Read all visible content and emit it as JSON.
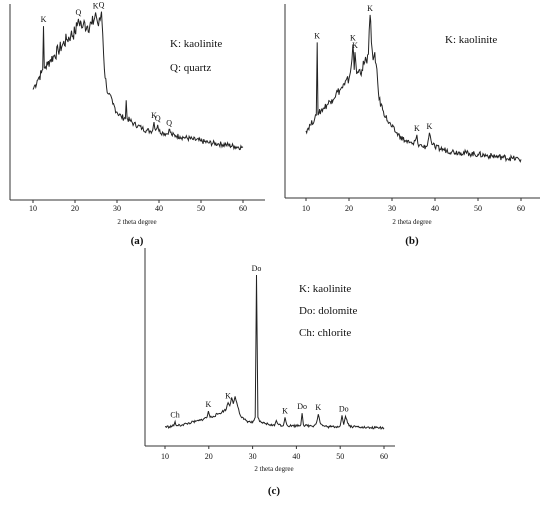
{
  "chart_data": [
    {
      "id": "a",
      "type": "line",
      "panel_label": "(a)",
      "xlabel": "2 theta degree",
      "ylabel": "",
      "xlim": [
        10,
        60
      ],
      "xticks": [
        "10",
        "20",
        "30",
        "40",
        "50",
        "60"
      ],
      "legend": [
        "K: kaolinite",
        "Q: quartz"
      ],
      "series": [
        {
          "x": [
            10,
            10.5,
            11,
            11.5,
            12,
            12.3,
            12.5,
            12.7,
            13,
            13.5,
            14,
            15,
            16,
            17,
            18,
            19,
            20,
            20.5,
            20.8,
            21,
            21.3,
            21.6,
            22,
            23,
            24,
            24.5,
            24.9,
            25.2,
            25.6,
            26,
            26.3,
            26.6,
            27,
            27.5,
            28,
            29,
            30,
            31,
            32,
            32.2,
            32.4,
            33,
            34,
            35,
            36,
            37,
            38,
            38.5,
            38.8,
            39.2,
            39.7,
            40,
            41,
            42,
            42.4,
            43,
            44,
            45,
            46,
            48,
            50,
            52,
            54,
            56,
            58,
            60
          ],
          "y": [
            100,
            105,
            110,
            114,
            118,
            122,
            170,
            124,
            125,
            128,
            132,
            137,
            143,
            149,
            155,
            160,
            163,
            170,
            178,
            173,
            176,
            168,
            172,
            170,
            172,
            176,
            185,
            178,
            170,
            177,
            186,
            162,
            122,
            103,
            95,
            84,
            75,
            70,
            68,
            88,
            68,
            66,
            62,
            60,
            57,
            55,
            54,
            55,
            64,
            55,
            61,
            54,
            52,
            51,
            56,
            50,
            49,
            48,
            47,
            45,
            43,
            41,
            40,
            39,
            37,
            36
          ]
        }
      ],
      "annotations": [
        {
          "text": "K",
          "x": 12.5,
          "y": 170
        },
        {
          "text": "Q",
          "x": 20.8,
          "y": 178
        },
        {
          "text": "K",
          "x": 24.9,
          "y": 185
        },
        {
          "text": "Q",
          "x": 26.3,
          "y": 186
        },
        {
          "text": "K",
          "x": 38.8,
          "y": 64
        },
        {
          "text": "Q",
          "x": 39.7,
          "y": 61
        },
        {
          "text": "Q",
          "x": 42.4,
          "y": 56
        }
      ]
    },
    {
      "id": "b",
      "type": "line",
      "panel_label": "(b)",
      "xlabel": "2 theta degree",
      "ylabel": "",
      "xlim": [
        10,
        60
      ],
      "xticks": [
        "10",
        "20",
        "30",
        "40",
        "50",
        "60"
      ],
      "legend": [
        "K: kaolinite"
      ],
      "series": [
        {
          "x": [
            10,
            11,
            12,
            12.4,
            12.6,
            12.8,
            13,
            14,
            15,
            16,
            17,
            18,
            19,
            20,
            20.5,
            20.9,
            21.2,
            21.4,
            21.8,
            22,
            23,
            23.5,
            24,
            24.5,
            24.9,
            25.2,
            25.6,
            26,
            26.3,
            26.7,
            27,
            28,
            29,
            30,
            31,
            32,
            33,
            34,
            35,
            35.4,
            35.8,
            36.2,
            36.6,
            37,
            38,
            38.4,
            38.7,
            39.1,
            39.5,
            40,
            42,
            44,
            46,
            48,
            50,
            52,
            54,
            56,
            58,
            60
          ],
          "y": [
            50,
            56,
            62,
            66,
            140,
            66,
            68,
            73,
            77,
            82,
            88,
            92,
            97,
            103,
            115,
            138,
            112,
            130,
            108,
            110,
            112,
            118,
            122,
            128,
            168,
            140,
            122,
            130,
            118,
            98,
            82,
            70,
            60,
            54,
            48,
            44,
            40,
            38,
            36,
            40,
            46,
            34,
            36,
            34,
            34,
            40,
            48,
            40,
            36,
            33,
            31,
            29,
            28,
            27,
            26,
            25,
            24,
            23,
            22,
            21
          ]
        }
      ],
      "annotations": [
        {
          "text": "K",
          "x": 12.6,
          "y": 140
        },
        {
          "text": "K",
          "x": 20.9,
          "y": 138
        },
        {
          "text": "K",
          "x": 21.4,
          "y": 130
        },
        {
          "text": "K",
          "x": 24.9,
          "y": 168
        },
        {
          "text": "K",
          "x": 35.8,
          "y": 46
        },
        {
          "text": "K",
          "x": 38.7,
          "y": 48
        }
      ]
    },
    {
      "id": "c",
      "type": "line",
      "panel_label": "(c)",
      "xlabel": "2 theta degree",
      "ylabel": "",
      "xlim": [
        10,
        60
      ],
      "xticks": [
        "10",
        "20",
        "30",
        "40",
        "50",
        "60"
      ],
      "legend": [
        "K: kaolinite",
        "Do: dolomite",
        "Ch: chlorite"
      ],
      "series": [
        {
          "x": [
            10,
            11,
            12,
            12.3,
            12.6,
            13,
            14,
            15,
            16,
            17,
            18,
            19,
            19.6,
            19.9,
            20.3,
            21,
            22,
            23,
            24,
            24.4,
            24.8,
            25.2,
            25.6,
            26,
            26.4,
            26.8,
            27.2,
            28,
            29,
            30,
            30.6,
            30.9,
            31.2,
            31.6,
            32,
            33,
            34,
            35,
            35.4,
            36,
            37,
            37.4,
            37.8,
            38,
            39,
            40,
            41,
            41.3,
            41.6,
            42,
            43,
            44,
            44.6,
            45,
            45.4,
            46,
            47,
            48,
            49,
            50,
            50.4,
            50.8,
            51.2,
            52,
            53,
            54,
            55,
            56,
            57,
            58,
            59,
            60
          ],
          "y": [
            5,
            5,
            6,
            10,
            6,
            6,
            7,
            8,
            9,
            10,
            11,
            13,
            14,
            20,
            14,
            15,
            17,
            19,
            22,
            28,
            25,
            33,
            27,
            34,
            28,
            22,
            16,
            12,
            10,
            9,
            14,
            150,
            14,
            10,
            9,
            8,
            7,
            6,
            11,
            7,
            6,
            14,
            7,
            6,
            6,
            6,
            7,
            18,
            7,
            6,
            6,
            6,
            9,
            17,
            9,
            6,
            5,
            5,
            5,
            6,
            16,
            7,
            15,
            6,
            5,
            5,
            5,
            4,
            4,
            4,
            4,
            4
          ]
        }
      ],
      "annotations": [
        {
          "text": "Ch",
          "x": 12.3,
          "y": 10
        },
        {
          "text": "K",
          "x": 19.9,
          "y": 20
        },
        {
          "text": "K",
          "x": 24.4,
          "y": 28
        },
        {
          "text": "Do",
          "x": 30.9,
          "y": 150
        },
        {
          "text": "K",
          "x": 37.4,
          "y": 14
        },
        {
          "text": "Do",
          "x": 41.3,
          "y": 18
        },
        {
          "text": "K",
          "x": 45,
          "y": 17
        },
        {
          "text": "Do",
          "x": 50.8,
          "y": 16
        }
      ]
    }
  ]
}
